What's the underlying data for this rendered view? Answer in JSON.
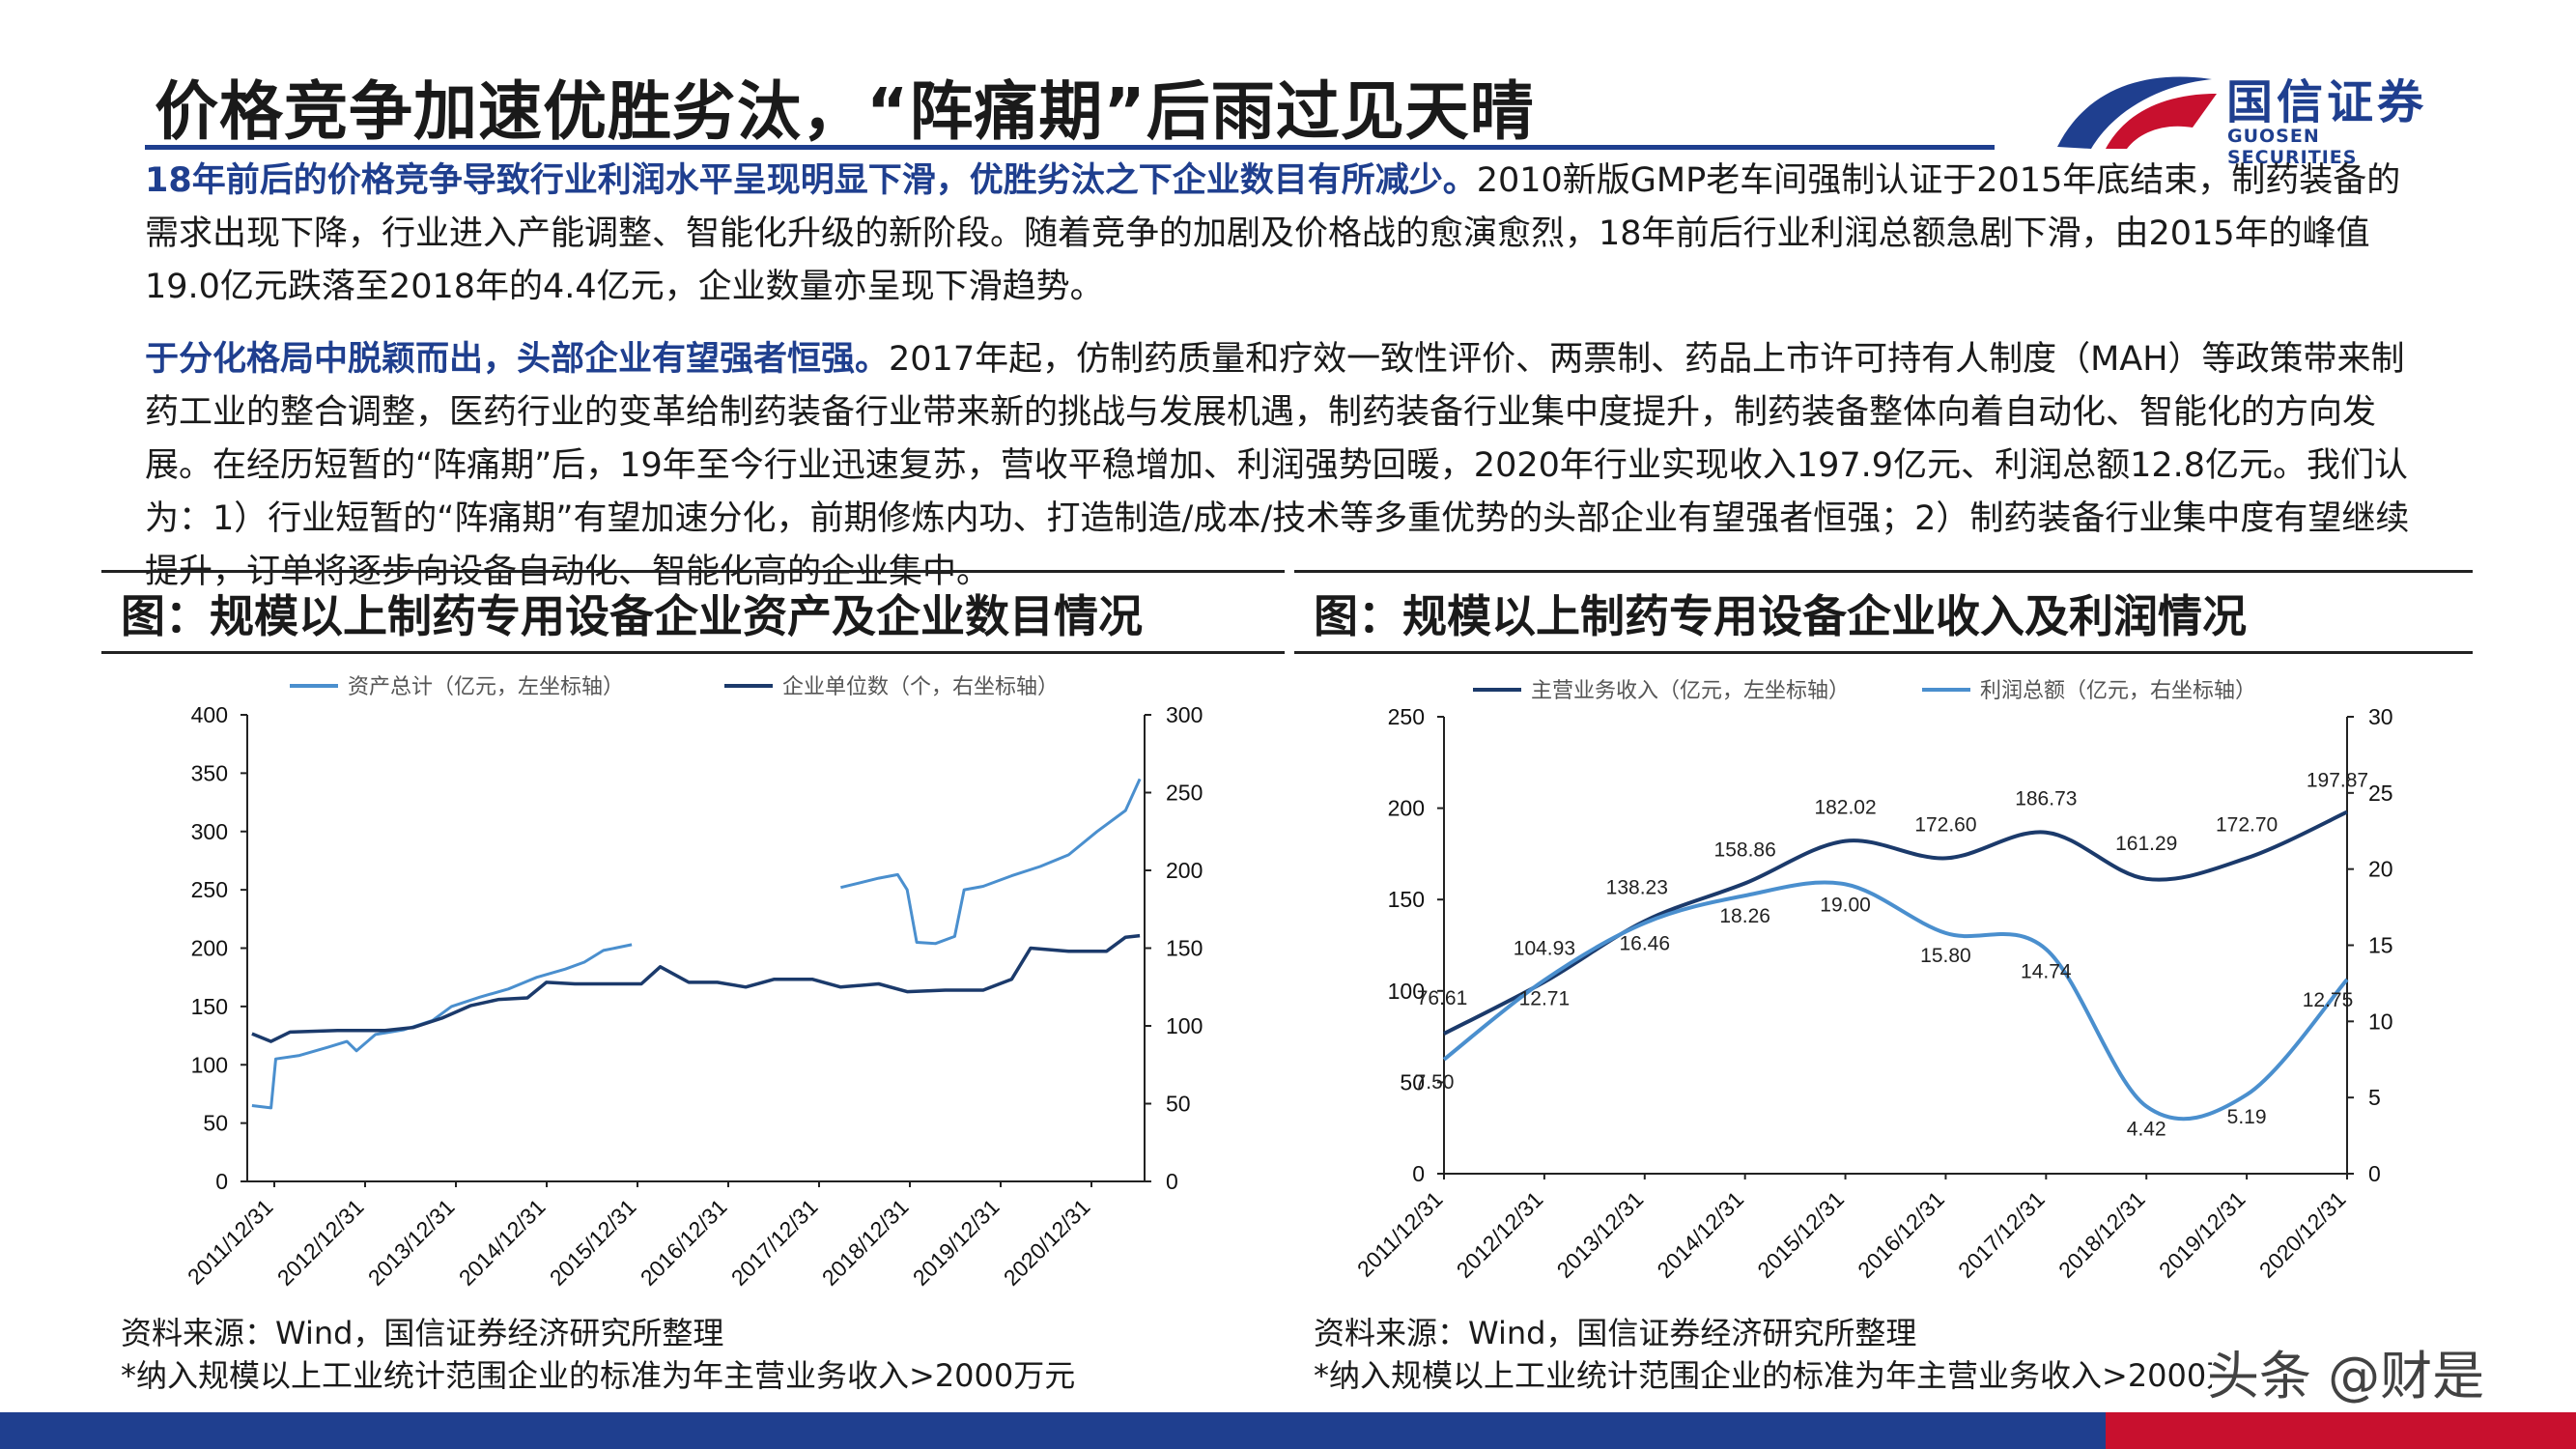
{
  "title": "价格竞争加速优胜劣汰，“阵痛期”后雨过见天晴",
  "logo": {
    "cn": "国信证券",
    "en": "GUOSEN SECURITIES"
  },
  "paragraphs": [
    {
      "highlight": "18年前后的价格竞争导致行业利润水平呈现明显下滑，优胜劣汰之下企业数目有所减少。",
      "text": "2010新版GMP老车间强制认证于2015年底结束，制药装备的需求出现下降，行业进入产能调整、智能化升级的新阶段。随着竞争的加剧及价格战的愈演愈烈，18年前后行业利润总额急剧下滑，由2015年的峰值19.0亿元跌落至2018年的4.4亿元，企业数量亦呈现下滑趋势。"
    },
    {
      "highlight": "于分化格局中脱颖而出，头部企业有望强者恒强。",
      "text": "2017年起，仿制药质量和疗效一致性评价、两票制、药品上市许可持有人制度（MAH）等政策带来制药工业的整合调整，医药行业的变革给制药装备行业带来新的挑战与发展机遇，制药装备行业集中度提升，制药装备整体向着自动化、智能化的方向发展。在经历短暂的“阵痛期”后，19年至今行业迅速复苏，营收平稳增加、利润强势回暖，2020年行业实现收入197.9亿元、利润总额12.8亿元。我们认为：1）行业短暂的“阵痛期”有望加速分化，前期修炼内功、打造制造/成本/技术等多重优势的头部企业有望强者恒强；2）制药装备行业集中度有望继续提升，订单将逐步向设备自动化、智能化高的企业集中。"
    }
  ],
  "left_section_title": "图：规模以上制药专用设备企业资产及企业数目情况",
  "right_section_title": "图：规模以上制药专用设备企业收入及利润情况",
  "left_source": [
    "资料来源：Wind，国信证券经济研究所整理",
    "*纳入规模以上工业统计范围企业的标准为年主营业务收入>2000万元"
  ],
  "right_source": [
    "资料来源：Wind，国信证券经济研究所整理",
    "*纳入规模以上工业统计范围企业的标准为年主营业务收入>2000万元"
  ],
  "watermark": "头条 @财是",
  "colors": {
    "dark": "#1b3a6b",
    "light": "#4a8fce",
    "brand": "#1f3f8f",
    "red": "#c8102e"
  },
  "chart_data": [
    {
      "type": "line",
      "categories": [
        "2011/12/31",
        "2012/12/31",
        "2013/12/31",
        "2014/12/31",
        "2015/12/31",
        "2016/12/31",
        "2017/12/31",
        "2018/12/31",
        "2019/12/31",
        "2020/12/31"
      ],
      "ylim": [
        0,
        400
      ],
      "y2lim": [
        0,
        300
      ],
      "yticks": [
        "0",
        "50",
        "100",
        "150",
        "200",
        "250",
        "300",
        "350",
        "400"
      ],
      "y2ticks": [
        "0",
        "50",
        "100",
        "150",
        "200",
        "250",
        "300"
      ],
      "series": [
        {
          "name": "资产总计（亿元，左坐标轴）",
          "axis": "left",
          "segments": [
            [
              [
                2011.9,
                65
              ],
              [
                2012.1,
                63
              ],
              [
                2012.15,
                105
              ],
              [
                2012.4,
                108
              ],
              [
                2012.7,
                115
              ],
              [
                2012.9,
                120
              ],
              [
                2013.0,
                112
              ],
              [
                2013.2,
                126
              ],
              [
                2013.5,
                130
              ],
              [
                2013.8,
                138
              ],
              [
                2014.0,
                150
              ],
              [
                2014.3,
                158
              ],
              [
                2014.6,
                165
              ],
              [
                2014.9,
                175
              ],
              [
                2015.2,
                182
              ],
              [
                2015.4,
                188
              ],
              [
                2015.6,
                198
              ],
              [
                2015.9,
                203
              ]
            ],
            [
              [
                2018.1,
                252
              ],
              [
                2018.3,
                256
              ],
              [
                2018.5,
                260
              ],
              [
                2018.7,
                263
              ],
              [
                2018.8,
                250
              ],
              [
                2018.9,
                205
              ],
              [
                2019.1,
                204
              ],
              [
                2019.3,
                210
              ],
              [
                2019.4,
                250
              ],
              [
                2019.6,
                253
              ],
              [
                2019.9,
                262
              ],
              [
                2020.2,
                270
              ],
              [
                2020.5,
                280
              ],
              [
                2020.8,
                300
              ],
              [
                2021.1,
                318
              ],
              [
                2021.25,
                345
              ]
            ]
          ]
        },
        {
          "name": "企业单位数（个，右坐标轴）",
          "axis": "right",
          "segments": [
            [
              [
                2011.9,
                95
              ],
              [
                2012.1,
                90
              ],
              [
                2012.3,
                96
              ],
              [
                2012.8,
                97
              ],
              [
                2013.3,
                97
              ],
              [
                2013.6,
                99
              ],
              [
                2013.9,
                105
              ],
              [
                2014.2,
                113
              ],
              [
                2014.5,
                117
              ],
              [
                2014.8,
                118
              ],
              [
                2015.0,
                128
              ],
              [
                2015.3,
                127
              ],
              [
                2015.7,
                127
              ],
              [
                2016.0,
                127
              ],
              [
                2016.2,
                138
              ],
              [
                2016.5,
                128
              ],
              [
                2016.8,
                128
              ],
              [
                2017.1,
                125
              ],
              [
                2017.4,
                130
              ],
              [
                2017.8,
                130
              ],
              [
                2018.1,
                125
              ],
              [
                2018.5,
                127
              ],
              [
                2018.8,
                122
              ],
              [
                2019.2,
                123
              ],
              [
                2019.6,
                123
              ],
              [
                2019.9,
                130
              ],
              [
                2020.1,
                150
              ],
              [
                2020.5,
                148
              ],
              [
                2020.9,
                148
              ],
              [
                2021.1,
                157
              ],
              [
                2021.25,
                158
              ]
            ]
          ]
        }
      ]
    },
    {
      "type": "line",
      "categories": [
        "2011/12/31",
        "2012/12/31",
        "2013/12/31",
        "2014/12/31",
        "2015/12/31",
        "2016/12/31",
        "2017/12/31",
        "2018/12/31",
        "2019/12/31",
        "2020/12/31"
      ],
      "ylim": [
        0,
        250
      ],
      "y2lim": [
        0,
        30
      ],
      "yticks": [
        "0",
        "50",
        "100",
        "150",
        "200",
        "250"
      ],
      "y2ticks": [
        "0",
        "5",
        "10",
        "15",
        "20",
        "25",
        "30"
      ],
      "series": [
        {
          "name": "主营业务收入（亿元，左坐标轴）",
          "axis": "left",
          "values": [
            76.61,
            104.93,
            138.23,
            158.86,
            182.02,
            172.6,
            186.73,
            161.29,
            172.7,
            197.87
          ],
          "labels": [
            "76.61",
            "104.93",
            "138.23",
            "158.86",
            "182.02",
            "172.60",
            "186.73",
            "161.29",
            "172.70",
            "197.87"
          ]
        },
        {
          "name": "利润总额（亿元，右坐标轴）",
          "axis": "right",
          "values": [
            7.5,
            12.71,
            16.46,
            18.26,
            19.0,
            15.8,
            14.74,
            4.42,
            5.19,
            12.75
          ],
          "labels": [
            "7.50",
            "12.71",
            "16.46",
            "18.26",
            "19.00",
            "15.80",
            "14.74",
            "4.42",
            "5.19",
            "12.75"
          ]
        }
      ]
    }
  ]
}
